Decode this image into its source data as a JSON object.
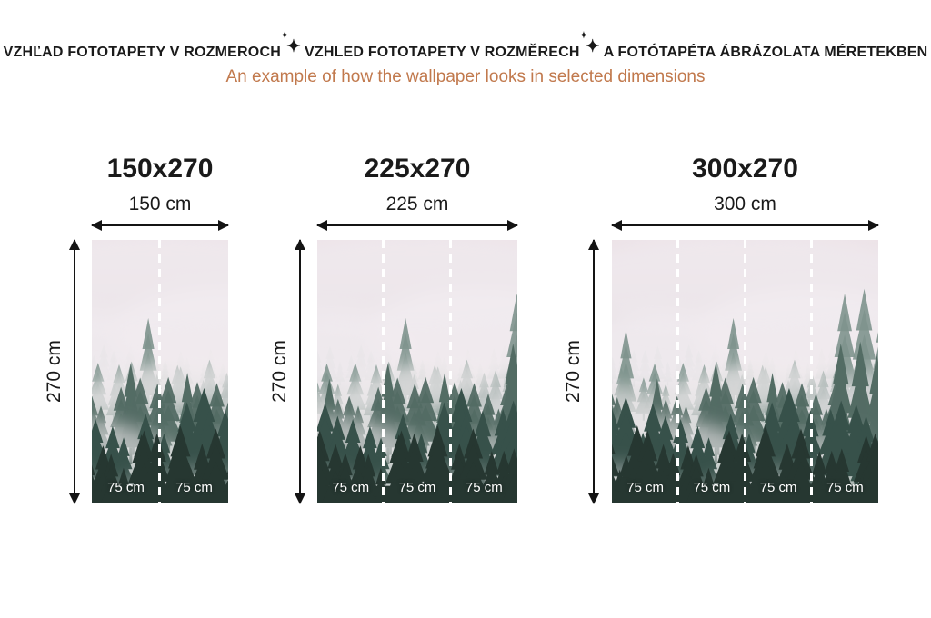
{
  "header": {
    "title_parts": [
      "VZHĽAD FOTOTAPETY V ROZMEROCH",
      "VZHLED FOTOTAPETY V ROZMĚRECH",
      "A FOTÓTAPÉTA ÁBRÁZOLATA MÉRETEKBEN"
    ],
    "sparkle_glyph": "✦",
    "subtitle": "An example of how the wallpaper looks in selected dimensions",
    "title_color": "#1a1a1a",
    "subtitle_color": "#c1794d"
  },
  "panels": [
    {
      "id": "150x270",
      "title": "150x270",
      "width_label": "150 cm",
      "height_label": "270 cm",
      "segments": [
        "75 cm",
        "75 cm"
      ]
    },
    {
      "id": "225x270",
      "title": "225x270",
      "width_label": "225 cm",
      "height_label": "270 cm",
      "segments": [
        "75 cm",
        "75 cm",
        "75 cm"
      ]
    },
    {
      "id": "300x270",
      "title": "300x270",
      "width_label": "300 cm",
      "height_label": "270 cm",
      "segments": [
        "75 cm",
        "75 cm",
        "75 cm",
        "75 cm"
      ]
    }
  ],
  "artwork": {
    "description": "misty-pine-forest-wallpaper",
    "palette": {
      "sky_top": "#ece2e7",
      "sky_mid": "#ddd6da",
      "sky_low": "#c6cdca",
      "fog": "#f1ebef",
      "far": "#a9b8b2",
      "mid": "#7e948d",
      "near": "#536c64",
      "front": "#37514a",
      "front2": "#263731",
      "seam": "#ffffff",
      "segment_label": "#ffffff",
      "arrow": "#141414"
    }
  }
}
